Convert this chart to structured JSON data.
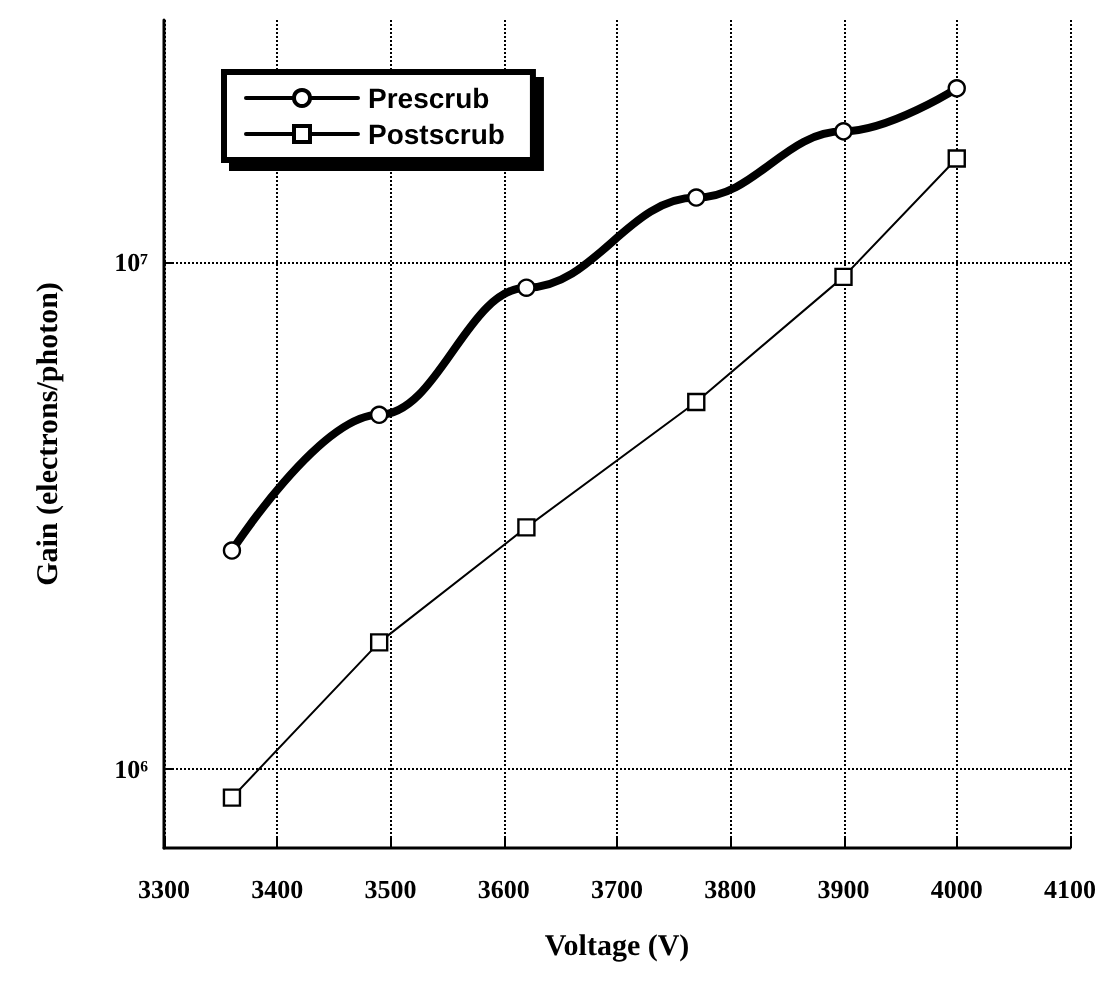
{
  "chart_data": {
    "type": "line",
    "xlabel": "Voltage (V)",
    "ylabel": "Gain (electrons/photon)",
    "x": [
      3360,
      3490,
      3620,
      3770,
      3900,
      4000
    ],
    "series": [
      {
        "name": "Prescrub",
        "color": "#000000",
        "marker": "circle",
        "values": [
          2700000,
          5000000,
          8900000,
          13400000,
          18100000,
          22000000
        ]
      },
      {
        "name": "Postscrub",
        "color": "#000000",
        "marker": "square",
        "values": [
          880000,
          1780000,
          3000000,
          5300000,
          9350000,
          16000000
        ]
      }
    ],
    "xlim": [
      3300,
      4100
    ],
    "xticks": [
      3300,
      3400,
      3500,
      3600,
      3700,
      3800,
      3900,
      4000,
      4100
    ],
    "ylim": [
      700000,
      30000000
    ],
    "yticks": [
      {
        "value": 1000000,
        "label": "10⁶"
      },
      {
        "value": 10000000,
        "label": "10⁷"
      }
    ],
    "log": "y",
    "grid": true,
    "legend": "top left",
    "line_style": "solid"
  }
}
